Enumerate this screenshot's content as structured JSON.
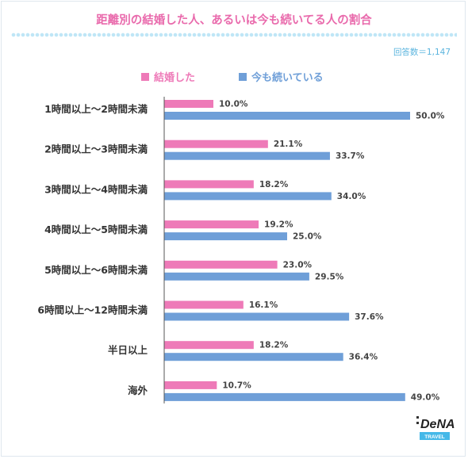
{
  "title": "距離別の結婚した人、あるいは今も続いてる人の割合",
  "respondents": "回答数＝1,147",
  "logo": {
    "name": "DeNA",
    "sub": "TRAVEL"
  },
  "colors": {
    "married": "#ee7ab8",
    "continuing": "#6f9fd8",
    "accent": "#e96aac"
  },
  "chart_data": {
    "type": "bar",
    "orientation": "horizontal",
    "categories": [
      "1時間以上〜2時間未満",
      "2時間以上〜3時間未満",
      "3時間以上〜4時間未満",
      "4時間以上〜5時間未満",
      "5時間以上〜6時間未満",
      "6時間以上〜12時間未満",
      "半日以上",
      "海外"
    ],
    "series": [
      {
        "name": "結婚した",
        "values": [
          10.0,
          21.1,
          18.2,
          19.2,
          23.0,
          16.1,
          18.2,
          10.7
        ],
        "labels": [
          "10.0%",
          "21.1%",
          "18.2%",
          "19.2%",
          "23.0%",
          "16.1%",
          "18.2%",
          "10.7%"
        ]
      },
      {
        "name": "今も続いている",
        "values": [
          50.0,
          33.7,
          34.0,
          25.0,
          29.5,
          37.6,
          36.4,
          49.0
        ],
        "labels": [
          "50.0%",
          "33.7%",
          "34.0%",
          "25.0%",
          "29.5%",
          "37.6%",
          "36.4%",
          "49.0%"
        ]
      }
    ],
    "unit": "%",
    "xlim": [
      0,
      50
    ],
    "legend_position": "top",
    "grid": false
  }
}
